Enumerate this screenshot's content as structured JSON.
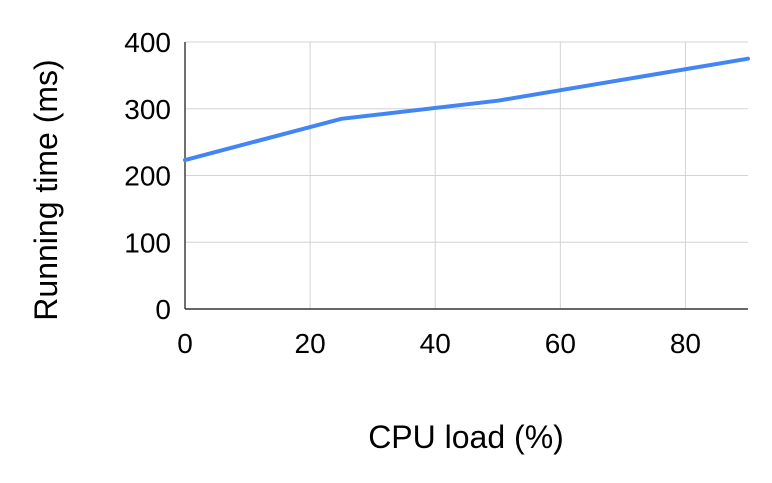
{
  "chart_data": {
    "type": "line",
    "title": "",
    "xlabel": "CPU load (%)",
    "ylabel": "Running time (ms)",
    "xlim": [
      0,
      90
    ],
    "ylim": [
      0,
      400
    ],
    "x_ticks": [
      0,
      20,
      40,
      60,
      80
    ],
    "y_ticks": [
      0,
      100,
      200,
      300,
      400
    ],
    "grid": true,
    "legend": "none",
    "series": [
      {
        "color": "#4285f4",
        "x": [
          0,
          25,
          50,
          90
        ],
        "y": [
          223,
          285,
          312,
          375
        ]
      }
    ]
  }
}
